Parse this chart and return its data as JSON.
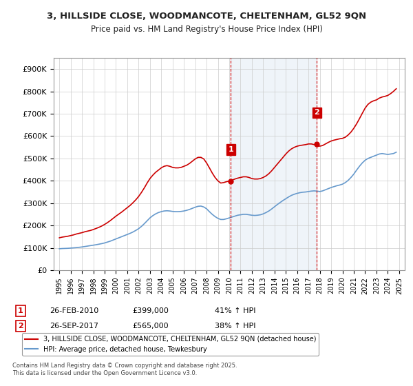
{
  "title_line1": "3, HILLSIDE CLOSE, WOODMANCOTE, CHELTENHAM, GL52 9QN",
  "title_line2": "Price paid vs. HM Land Registry's House Price Index (HPI)",
  "legend_label1": "3, HILLSIDE CLOSE, WOODMANCOTE, CHELTENHAM, GL52 9QN (detached house)",
  "legend_label2": "HPI: Average price, detached house, Tewkesbury",
  "annotation1_label": "1",
  "annotation1_date": "26-FEB-2010",
  "annotation1_price": "£399,000",
  "annotation1_hpi": "41% ↑ HPI",
  "annotation1_year": 2010.15,
  "annotation1_value": 399000,
  "annotation2_label": "2",
  "annotation2_date": "26-SEP-2017",
  "annotation2_price": "£565,000",
  "annotation2_hpi": "38% ↑ HPI",
  "annotation2_year": 2017.73,
  "annotation2_value": 565000,
  "property_color": "#cc0000",
  "hpi_color": "#6699cc",
  "background_color": "#ffffff",
  "plot_bg_color": "#ffffff",
  "grid_color": "#cccccc",
  "vline_color": "#cc0000",
  "vline_style": "--",
  "ylim": [
    0,
    950000
  ],
  "yticks": [
    0,
    100000,
    200000,
    300000,
    400000,
    500000,
    600000,
    700000,
    800000,
    900000
  ],
  "xlabel": "",
  "ylabel": "",
  "footer": "Contains HM Land Registry data © Crown copyright and database right 2025.\nThis data is licensed under the Open Government Licence v3.0.",
  "property_data_years": [
    1995.0,
    1995.25,
    1995.5,
    1995.75,
    1996.0,
    1996.25,
    1996.5,
    1996.75,
    1997.0,
    1997.25,
    1997.5,
    1997.75,
    1998.0,
    1998.25,
    1998.5,
    1998.75,
    1999.0,
    1999.25,
    1999.5,
    1999.75,
    2000.0,
    2000.25,
    2000.5,
    2000.75,
    2001.0,
    2001.25,
    2001.5,
    2001.75,
    2002.0,
    2002.25,
    2002.5,
    2002.75,
    2003.0,
    2003.25,
    2003.5,
    2003.75,
    2004.0,
    2004.25,
    2004.5,
    2004.75,
    2005.0,
    2005.25,
    2005.5,
    2005.75,
    2006.0,
    2006.25,
    2006.5,
    2006.75,
    2007.0,
    2007.25,
    2007.5,
    2007.75,
    2008.0,
    2008.25,
    2008.5,
    2008.75,
    2009.0,
    2009.25,
    2009.5,
    2009.75,
    2010.0,
    2010.25,
    2010.5,
    2010.75,
    2011.0,
    2011.25,
    2011.5,
    2011.75,
    2012.0,
    2012.25,
    2012.5,
    2012.75,
    2013.0,
    2013.25,
    2013.5,
    2013.75,
    2014.0,
    2014.25,
    2014.5,
    2014.75,
    2015.0,
    2015.25,
    2015.5,
    2015.75,
    2016.0,
    2016.25,
    2016.5,
    2016.75,
    2017.0,
    2017.25,
    2017.5,
    2017.75,
    2018.0,
    2018.25,
    2018.5,
    2018.75,
    2019.0,
    2019.25,
    2019.5,
    2019.75,
    2020.0,
    2020.25,
    2020.5,
    2020.75,
    2021.0,
    2021.25,
    2021.5,
    2021.75,
    2022.0,
    2022.25,
    2022.5,
    2022.75,
    2023.0,
    2023.25,
    2023.5,
    2023.75,
    2024.0,
    2024.25,
    2024.5,
    2024.75
  ],
  "property_data_values": [
    145000,
    148000,
    150000,
    152000,
    155000,
    158000,
    162000,
    165000,
    168000,
    172000,
    175000,
    178000,
    182000,
    187000,
    192000,
    198000,
    205000,
    213000,
    222000,
    232000,
    242000,
    251000,
    260000,
    270000,
    280000,
    290000,
    302000,
    315000,
    330000,
    348000,
    368000,
    390000,
    410000,
    425000,
    438000,
    448000,
    458000,
    465000,
    468000,
    465000,
    460000,
    458000,
    458000,
    460000,
    465000,
    470000,
    478000,
    488000,
    498000,
    505000,
    505000,
    498000,
    480000,
    458000,
    435000,
    415000,
    400000,
    390000,
    392000,
    396000,
    399000,
    403000,
    408000,
    412000,
    415000,
    418000,
    418000,
    415000,
    410000,
    408000,
    408000,
    410000,
    415000,
    422000,
    432000,
    445000,
    460000,
    475000,
    490000,
    505000,
    520000,
    533000,
    543000,
    550000,
    555000,
    558000,
    560000,
    562000,
    565000,
    565000,
    562000,
    558000,
    555000,
    558000,
    565000,
    572000,
    578000,
    582000,
    585000,
    588000,
    590000,
    595000,
    605000,
    618000,
    635000,
    655000,
    678000,
    702000,
    725000,
    742000,
    752000,
    758000,
    762000,
    770000,
    775000,
    778000,
    782000,
    790000,
    800000,
    812000
  ],
  "hpi_data_years": [
    1995.0,
    1995.25,
    1995.5,
    1995.75,
    1996.0,
    1996.25,
    1996.5,
    1996.75,
    1997.0,
    1997.25,
    1997.5,
    1997.75,
    1998.0,
    1998.25,
    1998.5,
    1998.75,
    1999.0,
    1999.25,
    1999.5,
    1999.75,
    2000.0,
    2000.25,
    2000.5,
    2000.75,
    2001.0,
    2001.25,
    2001.5,
    2001.75,
    2002.0,
    2002.25,
    2002.5,
    2002.75,
    2003.0,
    2003.25,
    2003.5,
    2003.75,
    2004.0,
    2004.25,
    2004.5,
    2004.75,
    2005.0,
    2005.25,
    2005.5,
    2005.75,
    2006.0,
    2006.25,
    2006.5,
    2006.75,
    2007.0,
    2007.25,
    2007.5,
    2007.75,
    2008.0,
    2008.25,
    2008.5,
    2008.75,
    2009.0,
    2009.25,
    2009.5,
    2009.75,
    2010.0,
    2010.25,
    2010.5,
    2010.75,
    2011.0,
    2011.25,
    2011.5,
    2011.75,
    2012.0,
    2012.25,
    2012.5,
    2012.75,
    2013.0,
    2013.25,
    2013.5,
    2013.75,
    2014.0,
    2014.25,
    2014.5,
    2014.75,
    2015.0,
    2015.25,
    2015.5,
    2015.75,
    2016.0,
    2016.25,
    2016.5,
    2016.75,
    2017.0,
    2017.25,
    2017.5,
    2017.75,
    2018.0,
    2018.25,
    2018.5,
    2018.75,
    2019.0,
    2019.25,
    2019.5,
    2019.75,
    2020.0,
    2020.25,
    2020.5,
    2020.75,
    2021.0,
    2021.25,
    2021.5,
    2021.75,
    2022.0,
    2022.25,
    2022.5,
    2022.75,
    2023.0,
    2023.25,
    2023.5,
    2023.75,
    2024.0,
    2024.25,
    2024.5,
    2024.75
  ],
  "hpi_data_values": [
    96000,
    97000,
    97500,
    98000,
    99000,
    100000,
    101000,
    102500,
    104000,
    106000,
    108000,
    110000,
    112000,
    114000,
    116500,
    119000,
    122000,
    126000,
    130000,
    135000,
    140000,
    145000,
    150000,
    155000,
    160000,
    165000,
    171000,
    178000,
    186000,
    196000,
    208000,
    221000,
    234000,
    244000,
    252000,
    258000,
    262000,
    265000,
    266000,
    265000,
    263000,
    262000,
    262000,
    263000,
    265000,
    268000,
    272000,
    277000,
    282000,
    286000,
    287000,
    283000,
    275000,
    262000,
    250000,
    240000,
    232000,
    227000,
    227000,
    230000,
    234000,
    238000,
    242000,
    246000,
    248000,
    250000,
    250000,
    248000,
    246000,
    245000,
    246000,
    248000,
    252000,
    258000,
    265000,
    274000,
    284000,
    294000,
    303000,
    312000,
    320000,
    328000,
    335000,
    340000,
    344000,
    347000,
    349000,
    350000,
    352000,
    354000,
    355000,
    354000,
    352000,
    355000,
    360000,
    365000,
    370000,
    374000,
    378000,
    381000,
    385000,
    392000,
    402000,
    415000,
    430000,
    448000,
    465000,
    480000,
    492000,
    500000,
    505000,
    510000,
    515000,
    520000,
    522000,
    520000,
    518000,
    520000,
    522000,
    528000
  ]
}
